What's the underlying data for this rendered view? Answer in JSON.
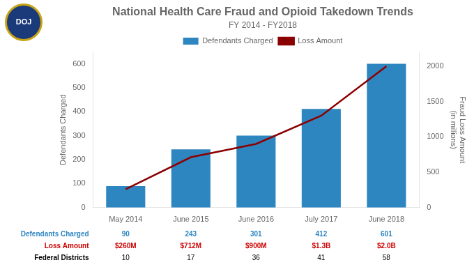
{
  "chart_data": {
    "type": "bar",
    "title": "National Health Care Fraud and Opioid Takedown Trends",
    "subtitle": "FY 2014 - FY2018",
    "categories": [
      "May 2014",
      "June 2015",
      "June 2016",
      "July 2017",
      "June 2018"
    ],
    "series": [
      {
        "name": "Defendants Charged",
        "type": "bar",
        "color": "#2E86C1",
        "values": [
          90,
          243,
          301,
          412,
          601
        ]
      },
      {
        "name": "Loss Amount",
        "type": "line",
        "color": "#8B0000",
        "axis": "y2",
        "values": [
          260,
          712,
          900,
          1300,
          2000
        ]
      }
    ],
    "ylabel": "Defendants Charged",
    "y2label": "Fraud Loss Amount\n(in millions)",
    "ylim": [
      0,
      650
    ],
    "yticks": [
      0,
      100,
      200,
      300,
      400,
      500,
      600
    ],
    "y2lim": [
      0,
      2200
    ],
    "y2ticks": [
      0,
      500,
      1000,
      1500,
      2000
    ],
    "grid": false,
    "legend": "top",
    "table": [
      {
        "name": "Defendants Charged",
        "color": "#2E86C1",
        "values": [
          90,
          243,
          301,
          412,
          601
        ]
      },
      {
        "name": "Loss Amount",
        "color": "#CC0000",
        "values": [
          260,
          712,
          900,
          1300,
          2000
        ],
        "value_labels": [
          "$260M",
          "$712M",
          "$900M",
          "$1.3B",
          "$2.0B"
        ]
      },
      {
        "name": "Federal Districts",
        "color": "#000000",
        "values": [
          10,
          17,
          36,
          41,
          58
        ]
      }
    ],
    "annotations": [
      "DOJ"
    ]
  }
}
